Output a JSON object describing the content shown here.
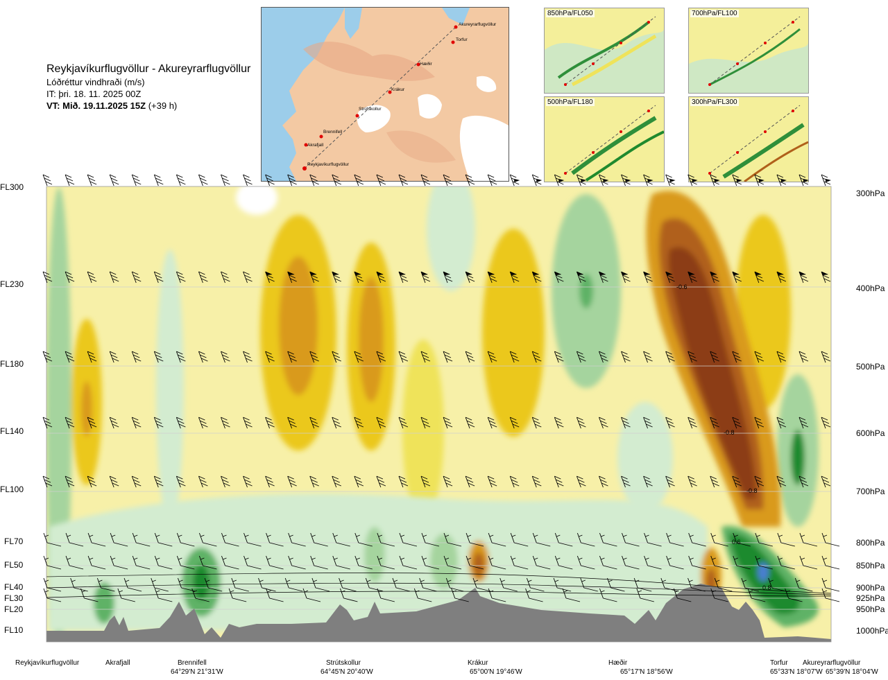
{
  "title": {
    "route": "Reykjavíkurflugvöllur - Akureyrarflugvöllur",
    "parameter": "Lóðréttur vindhraði (m/s)",
    "init": "IT: þri. 18. 11. 2025 00Z",
    "valid": "VT: Mið. 19.11.2025 15Z",
    "lead": "(+39 h)"
  },
  "map": {
    "places": [
      "Akureyrarflugvöllur",
      "Torfur",
      "Hæðir",
      "Krákur",
      "Strútskollur",
      "Brennifell",
      "Akrafjall",
      "Reykjavíkurflugvöllur"
    ]
  },
  "level_maps": [
    {
      "label": "850hPa/FL050"
    },
    {
      "label": "700hPa/FL100"
    },
    {
      "label": "500hPa/FL180"
    },
    {
      "label": "300hPa/FL300"
    }
  ],
  "colors": {
    "dark_brown": "#8c3e17",
    "brown": "#b0601a",
    "orange": "#d99a1a",
    "yellow_dark": "#ebc81a",
    "yellow": "#efe35a",
    "yellow_light": "#f7f0a8",
    "green_light": "#d3ecd0",
    "green_mid": "#a5d49e",
    "green": "#5fb266",
    "green_dark": "#1f8a2e",
    "blue": "#4a7fd0",
    "terrain": "#7f7f7f"
  },
  "chart_data": {
    "type": "heatmap",
    "title": "Lóðréttur vindhraði (m/s)",
    "y_flight_levels": [
      "FL300",
      "FL230",
      "FL180",
      "FL140",
      "FL100",
      "FL70",
      "FL50",
      "FL40",
      "FL30",
      "FL20",
      "FL10"
    ],
    "y_pressure_levels": [
      "300hPa",
      "400hPa",
      "500hPa",
      "600hPa",
      "700hPa",
      "800hPa",
      "850hPa",
      "900hPa",
      "925hPa",
      "950hPa",
      "1000hPa"
    ],
    "route_points": [
      {
        "name": "Reykjavíkurflugvöllur",
        "coord": ""
      },
      {
        "name": "Akrafjall",
        "coord": ""
      },
      {
        "name": "Brennifell",
        "coord": "64°29'N 21°31'W"
      },
      {
        "name": "Strútskollur",
        "coord": "64°45'N 20°40'W"
      },
      {
        "name": "Krákur",
        "coord": "65°00'N 19°46'W"
      },
      {
        "name": "Hæðir",
        "coord": "65°17'N 18°56'W"
      },
      {
        "name": "Torfur",
        "coord": "65°33'N 18°07'W"
      },
      {
        "name": "Akureyrarflugvöllur",
        "coord": "65°39'N 18°04'W"
      }
    ],
    "contour_labels": [
      "-0.6",
      "-0.8",
      "-0.8",
      "0.6",
      "0.8"
    ]
  }
}
